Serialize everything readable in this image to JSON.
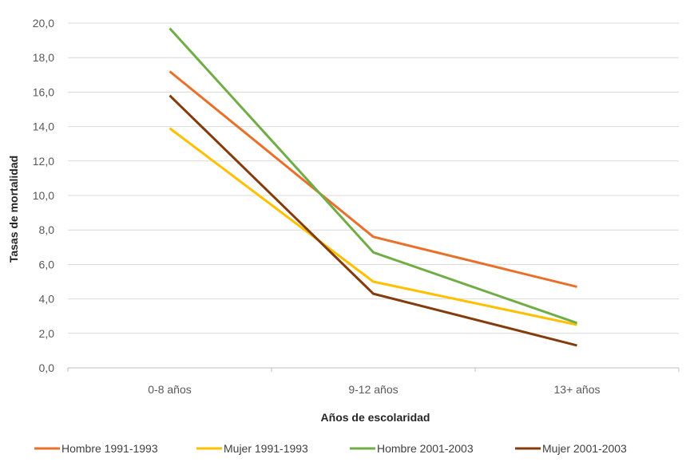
{
  "chart_data": {
    "type": "line",
    "categories": [
      "0-8 años",
      "9-12 años",
      "13+ años"
    ],
    "series": [
      {
        "name": "Hombre 1991-1993",
        "color": "#E8702A",
        "values": [
          17.2,
          7.6,
          4.7
        ]
      },
      {
        "name": "Mujer 1991-1993",
        "color": "#FFC000",
        "values": [
          13.9,
          5.0,
          2.5
        ]
      },
      {
        "name": "Hombre 2001-2003",
        "color": "#70AD47",
        "values": [
          19.7,
          6.7,
          2.6
        ]
      },
      {
        "name": "Mujer 2001-2003",
        "color": "#843C0C",
        "values": [
          15.8,
          4.3,
          1.3
        ]
      }
    ],
    "ylim": [
      0,
      20
    ],
    "y_ticks": [
      "0,0",
      "2,0",
      "4,0",
      "6,0",
      "8,0",
      "10,0",
      "12,0",
      "14,0",
      "16,0",
      "18,0",
      "20,0"
    ],
    "xlabel": "Años de escolaridad",
    "ylabel": "Tasas de mortalidad",
    "grid": true,
    "legend": "bottom"
  }
}
